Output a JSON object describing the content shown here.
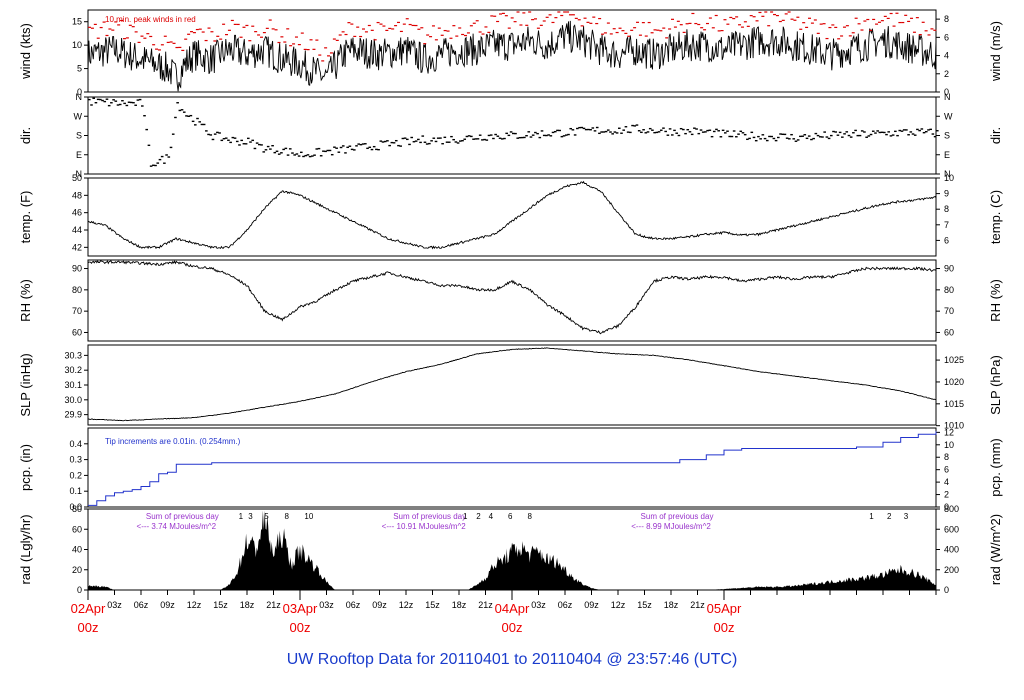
{
  "title": "UW Rooftop Data for 20110401  to  20110404 @ 23:57:46  (UTC)",
  "colors": {
    "axis": "#000000",
    "peak": "#dd0000",
    "precip": "#2233cc",
    "annot": "#9933cc",
    "title": "#1a3ccc",
    "date": "#ee0000"
  },
  "chart_data": [
    {
      "id": "wind",
      "type": "line",
      "ylabel_left": "wind (kts)",
      "ylabel_right": "wind (m/s)",
      "ylim": [
        0,
        17.5
      ],
      "ticks_left": [
        "0",
        "5",
        "10",
        "15"
      ],
      "ticks_right": [
        "0",
        "2",
        "4",
        "6",
        "8"
      ],
      "note": "10 min. peak winds in red",
      "series": [
        {
          "name": "wind speed",
          "hours": [
            0,
            3,
            6,
            9,
            10,
            11,
            12,
            14,
            16,
            18,
            20,
            22,
            24,
            26,
            27,
            29,
            30,
            33,
            36,
            38,
            40,
            42,
            44,
            46,
            48,
            50,
            52,
            54,
            56,
            58,
            60,
            62,
            64,
            66,
            68,
            70,
            72,
            74,
            76,
            78,
            80,
            82,
            84,
            86,
            88,
            90,
            92,
            94,
            96
          ],
          "values": [
            8,
            9,
            7,
            5,
            3,
            6,
            8,
            7,
            9,
            8,
            9,
            7,
            6,
            4,
            3,
            8,
            9,
            8,
            9,
            7,
            8,
            9,
            9,
            10,
            10,
            11,
            10,
            12,
            11,
            9,
            8,
            9,
            8,
            9,
            10,
            10,
            9,
            10,
            11,
            11,
            10,
            9,
            8,
            9,
            10,
            11,
            10,
            9,
            8
          ]
        }
      ]
    },
    {
      "id": "dir",
      "type": "scatter",
      "ylabel_left": "dir.",
      "ylabel_right": "dir.",
      "ylim": [
        0,
        360
      ],
      "ticks_left": [
        "N",
        "E",
        "S",
        "W",
        "N"
      ],
      "ticks_right": [
        "N",
        "E",
        "S",
        "W",
        "N"
      ],
      "series": [
        {
          "name": "wind direction (deg)",
          "hours": [
            0,
            2,
            4,
            6,
            7,
            8,
            9,
            10,
            11,
            12,
            14,
            16,
            18,
            20,
            22,
            24,
            26,
            28,
            30,
            32,
            34,
            36,
            38,
            40,
            42,
            44,
            46,
            48,
            50,
            52,
            54,
            56,
            58,
            60,
            62,
            64,
            66,
            68,
            70,
            72,
            74,
            76,
            78,
            80,
            82,
            84,
            86,
            88,
            90,
            92,
            94,
            96
          ],
          "values": [
            340,
            335,
            330,
            330,
            50,
            60,
            80,
            330,
            280,
            250,
            180,
            160,
            150,
            120,
            110,
            90,
            100,
            110,
            120,
            130,
            140,
            150,
            160,
            160,
            165,
            175,
            180,
            180,
            185,
            190,
            195,
            200,
            205,
            205,
            210,
            205,
            200,
            200,
            195,
            185,
            180,
            175,
            175,
            170,
            175,
            180,
            185,
            185,
            190,
            195,
            195,
            190
          ]
        }
      ]
    },
    {
      "id": "temp",
      "type": "line",
      "ylabel_left": "temp. (F)",
      "ylabel_right": "temp. (C)",
      "ylim": [
        41,
        50
      ],
      "ticks_left": [
        "42",
        "44",
        "46",
        "48",
        "50"
      ],
      "ticks_right": [
        "6",
        "7",
        "8",
        "9",
        "10"
      ],
      "series": [
        {
          "name": "temperature (F)",
          "hours": [
            0,
            2,
            4,
            6,
            8,
            10,
            12,
            14,
            16,
            18,
            20,
            22,
            24,
            26,
            28,
            30,
            32,
            34,
            36,
            38,
            40,
            42,
            44,
            46,
            48,
            50,
            52,
            54,
            56,
            58,
            60,
            62,
            64,
            66,
            68,
            70,
            72,
            74,
            76,
            78,
            80,
            82,
            84,
            86,
            88,
            90,
            92,
            94,
            96
          ],
          "values": [
            45,
            44.5,
            43,
            42,
            42,
            43,
            42.5,
            42,
            42,
            44,
            46.5,
            48.5,
            48,
            47,
            46,
            45,
            44,
            43,
            42.5,
            42,
            42,
            42.5,
            43,
            43.5,
            45,
            46.5,
            48,
            49,
            49.5,
            48.5,
            46,
            43.5,
            43,
            43,
            43.2,
            43.5,
            43.7,
            43.4,
            43.5,
            44,
            44.5,
            45,
            45.5,
            46,
            46.5,
            47,
            47.3,
            47.5,
            47.8
          ]
        }
      ]
    },
    {
      "id": "rh",
      "type": "line",
      "ylabel_left": "RH (%)",
      "ylabel_right": "RH (%)",
      "ylim": [
        56,
        94
      ],
      "ticks_left": [
        "60",
        "70",
        "80",
        "90"
      ],
      "ticks_right": [
        "60",
        "70",
        "80",
        "90"
      ],
      "series": [
        {
          "name": "relative humidity (%)",
          "hours": [
            0,
            4,
            8,
            10,
            12,
            14,
            16,
            18,
            20,
            22,
            24,
            26,
            28,
            30,
            32,
            34,
            36,
            38,
            40,
            42,
            44,
            46,
            48,
            50,
            52,
            54,
            56,
            58,
            60,
            62,
            64,
            66,
            68,
            70,
            72,
            74,
            76,
            78,
            80,
            82,
            84,
            86,
            88,
            90,
            92,
            94,
            96
          ],
          "values": [
            93,
            93,
            92,
            93,
            91,
            90,
            87,
            82,
            70,
            66,
            72,
            75,
            80,
            84,
            86,
            88,
            86,
            84,
            82,
            82,
            80,
            80,
            84,
            80,
            73,
            68,
            62,
            60,
            63,
            72,
            84,
            86,
            85,
            86,
            86,
            84,
            85,
            86,
            85,
            86,
            86,
            88,
            90,
            90,
            90,
            90,
            89
          ]
        }
      ]
    },
    {
      "id": "slp",
      "type": "line",
      "ylabel_left": "SLP (inHg)",
      "ylabel_right": "SLP (hPa)",
      "ylim": [
        29.83,
        30.37
      ],
      "ticks_left": [
        "29.9",
        "30.0",
        "30.1",
        "30.2",
        "30.3"
      ],
      "ticks_right": [
        "1010",
        "1015",
        "1020",
        "1025"
      ],
      "series": [
        {
          "name": "sea level pressure (inHg)",
          "hours": [
            0,
            4,
            8,
            12,
            16,
            20,
            24,
            28,
            32,
            36,
            40,
            44,
            48,
            52,
            56,
            60,
            64,
            68,
            72,
            76,
            80,
            84,
            88,
            92,
            96
          ],
          "values": [
            29.87,
            29.86,
            29.87,
            29.88,
            29.91,
            29.95,
            29.99,
            30.04,
            30.12,
            30.19,
            30.24,
            30.31,
            30.34,
            30.35,
            30.33,
            30.31,
            30.3,
            30.27,
            30.23,
            30.19,
            30.16,
            30.13,
            30.1,
            30.06,
            30.0
          ]
        }
      ]
    },
    {
      "id": "pcp",
      "type": "line",
      "ylabel_left": "pcp. (in)",
      "ylabel_right": "pcp. (mm)",
      "ylim": [
        0,
        0.5
      ],
      "ticks_left": [
        "0.0",
        "0.1",
        "0.2",
        "0.3",
        "0.4"
      ],
      "ticks_right": [
        "0",
        "2",
        "4",
        "6",
        "8",
        "10",
        "12"
      ],
      "note": "Tip increments are 0.01in. (0.254mm.)",
      "series": [
        {
          "name": "accumulated precipitation (in)",
          "hours": [
            0,
            1,
            2,
            3,
            4,
            5,
            6,
            7,
            8,
            9,
            10,
            11,
            12,
            14,
            16,
            18,
            20,
            24,
            30,
            40,
            50,
            60,
            66,
            67,
            70,
            72,
            74,
            75,
            80,
            84,
            87,
            90,
            92,
            94,
            96
          ],
          "values": [
            0.01,
            0.04,
            0.07,
            0.09,
            0.1,
            0.11,
            0.13,
            0.16,
            0.21,
            0.22,
            0.27,
            0.27,
            0.27,
            0.28,
            0.28,
            0.28,
            0.28,
            0.28,
            0.28,
            0.28,
            0.28,
            0.28,
            0.28,
            0.3,
            0.33,
            0.36,
            0.37,
            0.37,
            0.37,
            0.37,
            0.38,
            0.41,
            0.44,
            0.46,
            0.48
          ]
        }
      ]
    },
    {
      "id": "rad",
      "type": "area",
      "ylabel_left": "rad (Lgly/hr)",
      "ylabel_right": "rad (W/m^2)",
      "ylim": [
        0,
        80
      ],
      "ticks_left": [
        "0",
        "20",
        "40",
        "60",
        "80"
      ],
      "ticks_right": [
        "0",
        "200",
        "400",
        "600",
        "800"
      ],
      "annotations": [
        {
          "hour": 10,
          "line1": "Sum of previous day",
          "line2": "<--- 3.74 MJoules/m^2"
        },
        {
          "hour": 38,
          "line1": "Sum of previous day",
          "line2": "<--- 10.91 MJoules/m^2"
        },
        {
          "hour": 66,
          "line1": "Sum of previous day",
          "line2": "<--- 8.99 MJoules/m^2"
        }
      ],
      "marks": [
        {
          "label": "1",
          "hour": 17.3
        },
        {
          "label": "3",
          "hour": 18.4
        },
        {
          "label": "5",
          "hour": 20.2
        },
        {
          "label": "8",
          "hour": 22.5
        },
        {
          "label": "10",
          "hour": 25.0
        },
        {
          "label": "1",
          "hour": 42.7
        },
        {
          "label": "2",
          "hour": 44.2
        },
        {
          "label": "4",
          "hour": 45.6
        },
        {
          "label": "6",
          "hour": 47.8
        },
        {
          "label": "8",
          "hour": 50.0
        },
        {
          "label": "1",
          "hour": 88.7
        },
        {
          "label": "2",
          "hour": 90.7
        },
        {
          "label": "3",
          "hour": 92.6
        }
      ],
      "series": [
        {
          "name": "solar radiation (Lgly/hr)",
          "hours": [
            0,
            1,
            2,
            3,
            15,
            16,
            17,
            18,
            19,
            20,
            21,
            22,
            23,
            24,
            25,
            26,
            27,
            28,
            43,
            44,
            45,
            46,
            47,
            48,
            49,
            50,
            51,
            52,
            53,
            54,
            55,
            56,
            57,
            58,
            70,
            72,
            74,
            76,
            78,
            80,
            82,
            84,
            86,
            88,
            90,
            91,
            92,
            93,
            94,
            95,
            96
          ],
          "values": [
            4,
            4,
            3,
            0,
            0,
            5,
            20,
            50,
            40,
            70,
            35,
            55,
            25,
            40,
            30,
            20,
            8,
            0,
            0,
            5,
            12,
            25,
            30,
            38,
            42,
            35,
            38,
            30,
            28,
            20,
            12,
            6,
            2,
            0,
            0,
            1,
            2,
            3,
            3,
            4,
            6,
            8,
            10,
            12,
            15,
            18,
            20,
            18,
            15,
            10,
            5
          ]
        }
      ]
    }
  ],
  "x_axis": {
    "hour_ticks": [
      "03z",
      "06z",
      "09z",
      "12z",
      "15z",
      "18z",
      "21z",
      "03z",
      "06z",
      "09z",
      "12z",
      "15z",
      "18z",
      "21z",
      "03z",
      "06z",
      "09z",
      "12z",
      "15z",
      "18z",
      "21z"
    ],
    "dates": [
      {
        "day": "02Apr",
        "time": "00z"
      },
      {
        "day": "03Apr",
        "time": "00z"
      },
      {
        "day": "04Apr",
        "time": "00z"
      },
      {
        "day": "05Apr",
        "time": "00z"
      }
    ]
  }
}
